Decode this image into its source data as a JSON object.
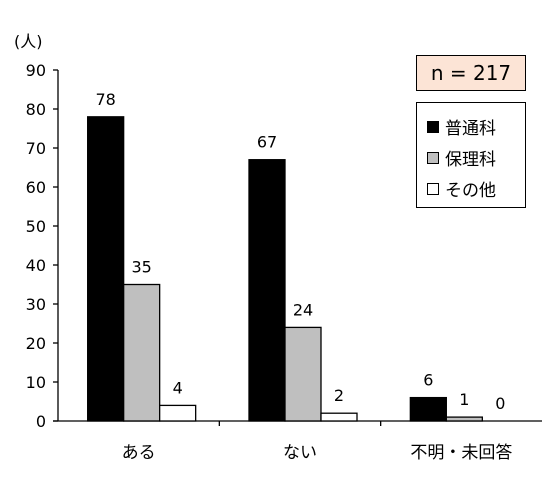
{
  "chart_data": {
    "type": "bar",
    "unit_label": "(人)",
    "n_label": "n = 217",
    "categories": [
      "ある",
      "ない",
      "不明・未回答"
    ],
    "series": [
      {
        "name": "普通科",
        "color": "#000000",
        "values": [
          78,
          67,
          6
        ]
      },
      {
        "name": "保理科",
        "color": "#bfbfbf",
        "values": [
          35,
          24,
          1
        ]
      },
      {
        "name": "その他",
        "color": "#ffffff",
        "values": [
          4,
          2,
          0
        ]
      }
    ],
    "ylim": [
      0,
      90
    ],
    "yticks": [
      0,
      10,
      20,
      30,
      40,
      50,
      60,
      70,
      80,
      90
    ],
    "grid": false,
    "legend_position": "top-right",
    "data_labels": true
  }
}
